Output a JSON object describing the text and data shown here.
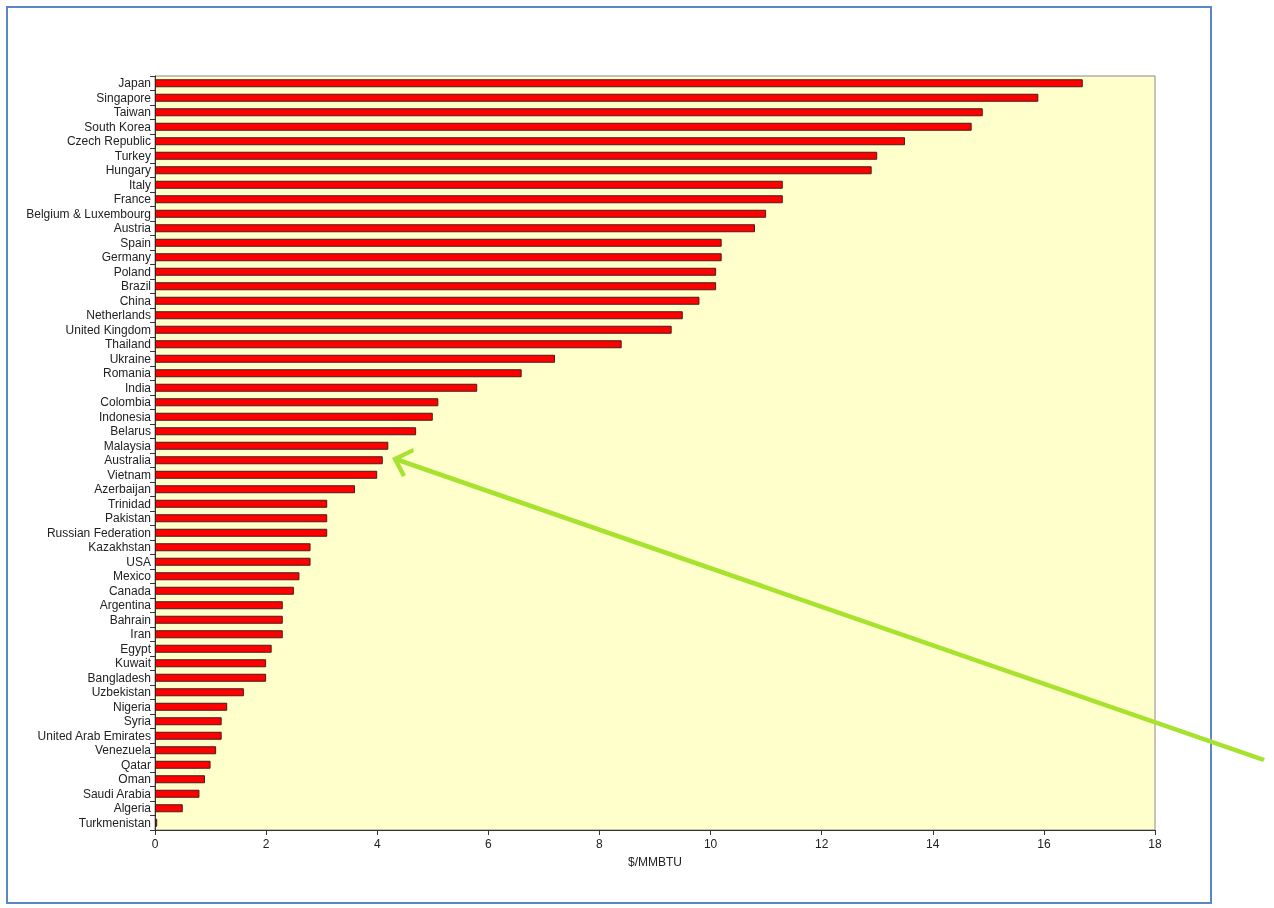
{
  "chart_data": {
    "type": "bar",
    "orientation": "horizontal",
    "xlabel": "$/MMBTU",
    "categories": [
      "Japan",
      "Singapore",
      "Taiwan",
      "South Korea",
      "Czech Republic",
      "Turkey",
      "Hungary",
      "Italy",
      "France",
      "Belgium & Luxembourg",
      "Austria",
      "Spain",
      "Germany",
      "Poland",
      "Brazil",
      "China",
      "Netherlands",
      "United Kingdom",
      "Thailand",
      "Ukraine",
      "Romania",
      "India",
      "Colombia",
      "Indonesia",
      "Belarus",
      "Malaysia",
      "Australia",
      "Vietnam",
      "Azerbaijan",
      "Trinidad",
      "Pakistan",
      "Russian Federation",
      "Kazakhstan",
      "USA",
      "Mexico",
      "Canada",
      "Argentina",
      "Bahrain",
      "Iran",
      "Egypt",
      "Kuwait",
      "Bangladesh",
      "Uzbekistan",
      "Nigeria",
      "Syria",
      "United Arab Emirates",
      "Venezuela",
      "Qatar",
      "Oman",
      "Saudi Arabia",
      "Algeria",
      "Turkmenistan"
    ],
    "values": [
      16.7,
      15.9,
      14.9,
      14.7,
      13.5,
      13.0,
      12.9,
      11.3,
      11.3,
      11.0,
      10.8,
      10.2,
      10.2,
      10.1,
      10.1,
      9.8,
      9.5,
      9.3,
      8.4,
      7.2,
      6.6,
      5.8,
      5.1,
      5.0,
      4.7,
      4.2,
      4.1,
      4.0,
      3.6,
      3.1,
      3.1,
      3.1,
      2.8,
      2.8,
      2.6,
      2.5,
      2.3,
      2.3,
      2.3,
      2.1,
      2.0,
      2.0,
      1.6,
      1.3,
      1.2,
      1.2,
      1.1,
      1.0,
      0.9,
      0.8,
      0.5,
      0.04
    ],
    "color": "#ff0000",
    "xlim": [
      0,
      18
    ],
    "xticks": [
      0,
      2,
      4,
      6,
      8,
      10,
      12,
      14,
      16,
      18
    ],
    "grid": false
  }
}
